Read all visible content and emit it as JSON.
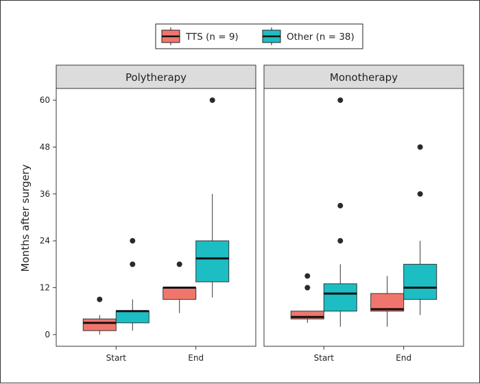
{
  "chart_data": {
    "type": "boxplot",
    "ylabel": "Months after surgery",
    "ylim": [
      -3,
      63
    ],
    "yticks": [
      0,
      12,
      24,
      36,
      48,
      60
    ],
    "categories": [
      "Start",
      "End"
    ],
    "legend": {
      "position": "top",
      "items": [
        {
          "label": "TTS (n = 9)",
          "color": "#F0766D"
        },
        {
          "label": "Other (n = 38)",
          "color": "#1CBEC4"
        }
      ]
    },
    "panels": [
      {
        "title": "Polytherapy",
        "boxes": [
          {
            "category": "Start",
            "group": "TTS (n = 9)",
            "whisker_low": 0,
            "q1": 1,
            "median": 3,
            "q3": 4,
            "whisker_high": 5,
            "outliers": [
              9
            ]
          },
          {
            "category": "Start",
            "group": "Other (n = 38)",
            "whisker_low": 1,
            "q1": 3,
            "median": 6,
            "q3": 6,
            "whisker_high": 9,
            "outliers": [
              18,
              24
            ]
          },
          {
            "category": "End",
            "group": "TTS (n = 9)",
            "whisker_low": 5.5,
            "q1": 9,
            "median": 12,
            "q3": 12,
            "whisker_high": 12,
            "outliers": [
              18
            ]
          },
          {
            "category": "End",
            "group": "Other (n = 38)",
            "whisker_low": 9.5,
            "q1": 13.5,
            "median": 19.5,
            "q3": 24,
            "whisker_high": 36,
            "outliers": [
              60
            ]
          }
        ]
      },
      {
        "title": "Monotherapy",
        "boxes": [
          {
            "category": "Start",
            "group": "TTS (n = 9)",
            "whisker_low": 3,
            "q1": 4,
            "median": 4.5,
            "q3": 6,
            "whisker_high": 6,
            "outliers": [
              12,
              15
            ]
          },
          {
            "category": "Start",
            "group": "Other (n = 38)",
            "whisker_low": 2,
            "q1": 6,
            "median": 10.5,
            "q3": 13,
            "whisker_high": 18,
            "outliers": [
              24,
              33,
              60
            ]
          },
          {
            "category": "End",
            "group": "TTS (n = 9)",
            "whisker_low": 2,
            "q1": 6,
            "median": 6.5,
            "q3": 10.5,
            "whisker_high": 15,
            "outliers": []
          },
          {
            "category": "End",
            "group": "Other (n = 38)",
            "whisker_low": 5,
            "q1": 9,
            "median": 12,
            "q3": 18,
            "whisker_high": 24,
            "outliers": [
              36,
              48
            ]
          }
        ]
      }
    ]
  }
}
